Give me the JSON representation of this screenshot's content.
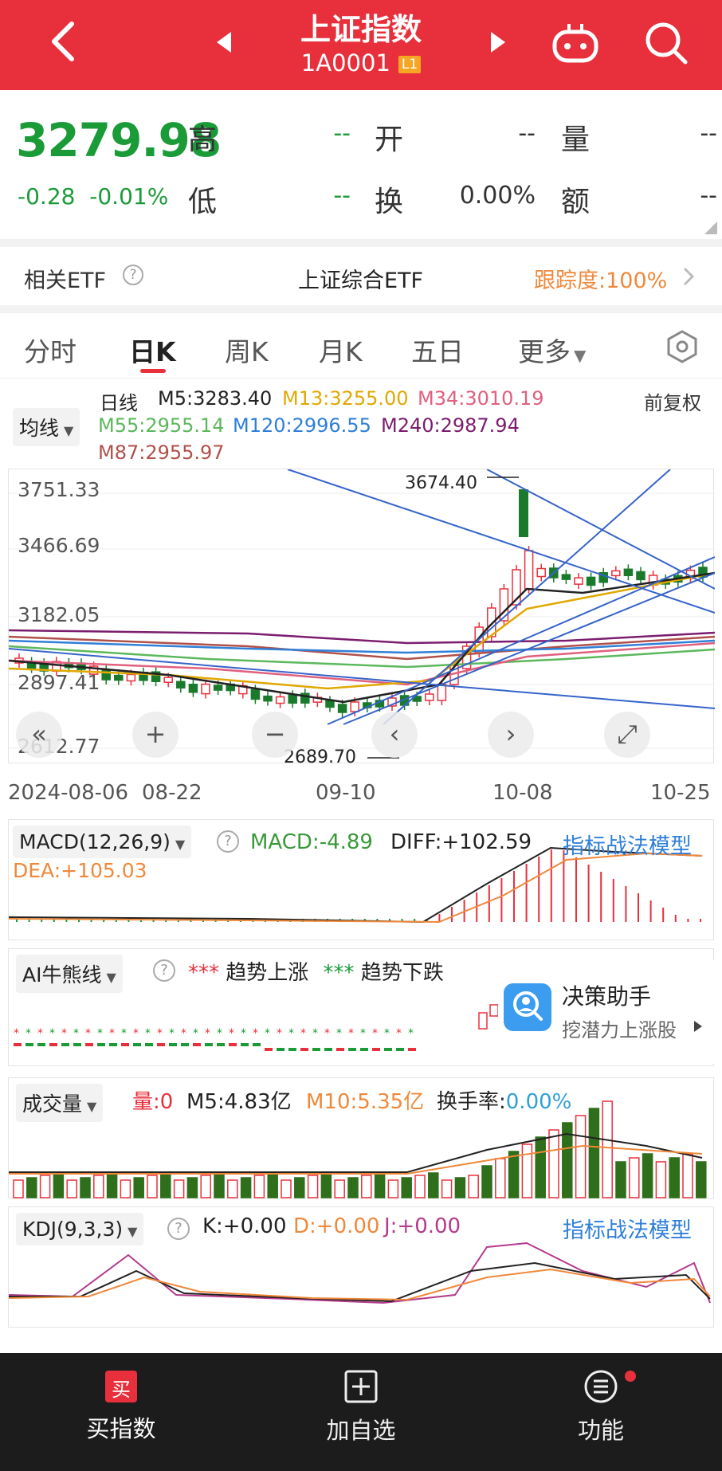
{
  "header": {
    "title": "上证指数",
    "code": "1A0001",
    "level_badge": "L1",
    "icons": [
      "back-arrow-icon",
      "prev-triangle-icon",
      "next-triangle-icon",
      "robot-icon",
      "search-icon"
    ]
  },
  "quote": {
    "price": "3279.98",
    "change": "-0.28",
    "change_pct": "-0.01%",
    "high_label": "高",
    "high_value": "--",
    "low_label": "低",
    "low_value": "--",
    "open_label": "开",
    "open_value": "--",
    "turnover_label": "换",
    "turnover_value": "0.00%",
    "volume_label": "量",
    "volume_value": "--",
    "amount_label": "额",
    "amount_value": "--"
  },
  "etf": {
    "label": "相关ETF",
    "name": "上证综合ETF",
    "tracking": "跟踪度:100%"
  },
  "tabs": {
    "items": [
      "分时",
      "日K",
      "周K",
      "月K",
      "五日",
      "更多"
    ],
    "active": "日K"
  },
  "kline": {
    "selector": "均线",
    "period_label": "日线",
    "fq_label": "前复权",
    "ma": [
      {
        "text": "M5:3283.40",
        "color": "#222222"
      },
      {
        "text": "M13:3255.00",
        "color": "#e0a800"
      },
      {
        "text": "M34:3010.19",
        "color": "#e0607e"
      },
      {
        "text": "M55:2955.14",
        "color": "#5cb85c"
      },
      {
        "text": "M120:2996.55",
        "color": "#2f7fd8"
      },
      {
        "text": "M240:2987.94",
        "color": "#7b1d6f"
      },
      {
        "text": "M87:2955.97",
        "color": "#b0504a"
      }
    ],
    "y_ticks": [
      "3751.33",
      "3466.69",
      "3182.05",
      "2897.41",
      "2612.77"
    ],
    "x_ticks": [
      "2024-08-06",
      "08-22",
      "09-10",
      "10-08",
      "10-25"
    ],
    "high_marker": "3674.40",
    "low_marker": "2689.70",
    "nav_buttons": [
      "«",
      "+",
      "−",
      "‹",
      "›",
      "⤢"
    ]
  },
  "macd": {
    "selector": "MACD(12,26,9)",
    "macd": "MACD:-4.89",
    "diff": "DIFF:+102.59",
    "dea": "DEA:+105.03",
    "link": "指标战法模型"
  },
  "ai": {
    "selector": "AI牛熊线",
    "up_marker": "***",
    "up_label": "趋势上涨",
    "down_marker": "***",
    "down_label": "趋势下跌",
    "helper_title": "决策助手",
    "helper_sub": "挖潜力上涨股"
  },
  "volume": {
    "selector": "成交量",
    "vol": "量:0",
    "m5": "M5:4.83亿",
    "m10": "M10:5.35亿",
    "turnover_label": "换手率:",
    "turnover_value": "0.00%"
  },
  "kdj": {
    "selector": "KDJ(9,3,3)",
    "k": "K:+0.00",
    "d": "D:+0.00",
    "j": "J:+0.00",
    "link": "指标战法模型"
  },
  "bottom": {
    "buy_icon_text": "买",
    "buy": "买指数",
    "add": "加自选",
    "func": "功能"
  },
  "colors": {
    "brand_red": "#e8303c",
    "down_green": "#1a9b38",
    "up_red": "#e8303c",
    "link_blue": "#2f7fd8"
  }
}
